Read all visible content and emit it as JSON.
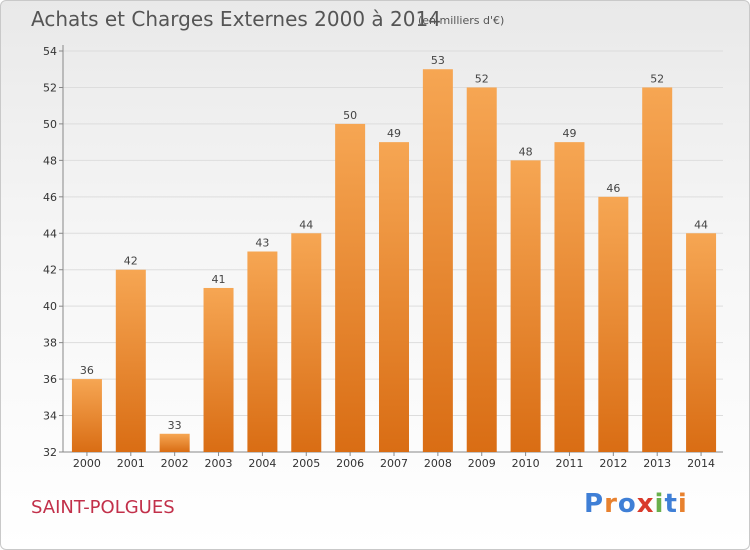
{
  "header": {
    "title": "Achats et Charges Externes 2000 à 2014",
    "unit": "(en milliers d'€)"
  },
  "footer": {
    "town": "SAINT-POLGUES",
    "logo": "Proxiti"
  },
  "colors": {
    "bar_light": "#f6a653",
    "bar_dark": "#d96d14",
    "grid": "#dddddd",
    "town": "#c2304a",
    "logo_letters": [
      "#3f7fd6",
      "#e8812e",
      "#3f7fd6",
      "#d93a2b",
      "#6ab04c",
      "#3f7fd6",
      "#e8812e"
    ]
  },
  "chart_data": {
    "type": "bar",
    "title": "Achats et Charges Externes 2000 à 2014",
    "subtitle": "(en milliers d'€)",
    "categories": [
      "2000",
      "2001",
      "2002",
      "2003",
      "2004",
      "2005",
      "2006",
      "2007",
      "2008",
      "2009",
      "2010",
      "2011",
      "2012",
      "2013",
      "2014"
    ],
    "values": [
      36,
      42,
      33,
      41,
      43,
      44,
      50,
      49,
      53,
      52,
      48,
      49,
      46,
      52,
      44
    ],
    "ylim": [
      32,
      54
    ],
    "yticks": [
      32,
      34,
      36,
      38,
      40,
      42,
      44,
      46,
      48,
      50,
      52,
      54
    ],
    "grid": true,
    "data_labels": true
  }
}
